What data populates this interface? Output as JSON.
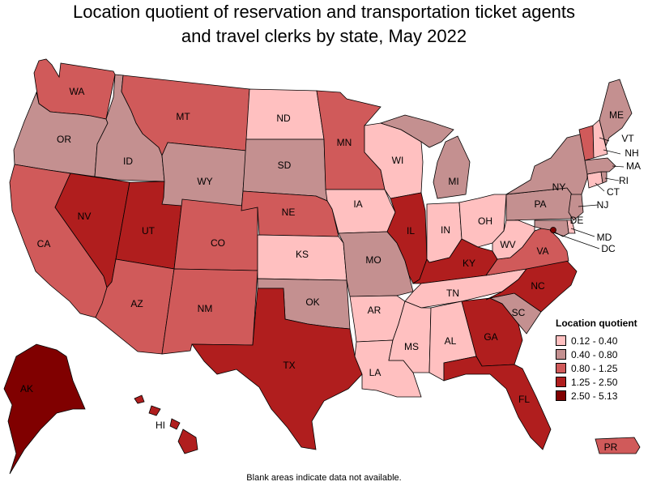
{
  "title_line1": "Location quotient of reservation and transportation ticket agents",
  "title_line2": "and travel clerks by state, May 2022",
  "legend": {
    "title": "Location quotient",
    "items": [
      {
        "label": "0.12 - 0.40",
        "color": "#ffc0c0"
      },
      {
        "label": "0.40 - 0.80",
        "color": "#c49090"
      },
      {
        "label": "0.80 - 1.25",
        "color": "#d05a5a"
      },
      {
        "label": "1.25 - 2.50",
        "color": "#b01e1e"
      },
      {
        "label": "2.50 - 5.13",
        "color": "#800000"
      }
    ]
  },
  "footnote": "Blank areas indicate data not available.",
  "states": [
    {
      "abbr": "WA",
      "cls": 2
    },
    {
      "abbr": "OR",
      "cls": 1
    },
    {
      "abbr": "CA",
      "cls": 2
    },
    {
      "abbr": "ID",
      "cls": 1
    },
    {
      "abbr": "NV",
      "cls": 3
    },
    {
      "abbr": "UT",
      "cls": 3
    },
    {
      "abbr": "AZ",
      "cls": 2
    },
    {
      "abbr": "MT",
      "cls": 2
    },
    {
      "abbr": "WY",
      "cls": 1
    },
    {
      "abbr": "CO",
      "cls": 2
    },
    {
      "abbr": "NM",
      "cls": 2
    },
    {
      "abbr": "ND",
      "cls": 0
    },
    {
      "abbr": "SD",
      "cls": 1
    },
    {
      "abbr": "NE",
      "cls": 2
    },
    {
      "abbr": "KS",
      "cls": 0
    },
    {
      "abbr": "OK",
      "cls": 1
    },
    {
      "abbr": "TX",
      "cls": 3
    },
    {
      "abbr": "MN",
      "cls": 2
    },
    {
      "abbr": "IA",
      "cls": 0
    },
    {
      "abbr": "MO",
      "cls": 1
    },
    {
      "abbr": "AR",
      "cls": 0
    },
    {
      "abbr": "LA",
      "cls": 0
    },
    {
      "abbr": "WI",
      "cls": 0
    },
    {
      "abbr": "IL",
      "cls": 3
    },
    {
      "abbr": "MI",
      "cls": 1
    },
    {
      "abbr": "IN",
      "cls": 0
    },
    {
      "abbr": "OH",
      "cls": 0
    },
    {
      "abbr": "KY",
      "cls": 3
    },
    {
      "abbr": "TN",
      "cls": 0
    },
    {
      "abbr": "MS",
      "cls": 0
    },
    {
      "abbr": "AL",
      "cls": 0
    },
    {
      "abbr": "GA",
      "cls": 3
    },
    {
      "abbr": "FL",
      "cls": 3
    },
    {
      "abbr": "SC",
      "cls": 1
    },
    {
      "abbr": "NC",
      "cls": 3
    },
    {
      "abbr": "VA",
      "cls": 2
    },
    {
      "abbr": "WV",
      "cls": 0
    },
    {
      "abbr": "PA",
      "cls": 1
    },
    {
      "abbr": "NY",
      "cls": 1
    },
    {
      "abbr": "NJ",
      "cls": 1
    },
    {
      "abbr": "DE",
      "cls": 0
    },
    {
      "abbr": "MD",
      "cls": 1
    },
    {
      "abbr": "DC",
      "cls": 4
    },
    {
      "abbr": "CT",
      "cls": 0
    },
    {
      "abbr": "RI",
      "cls": 1
    },
    {
      "abbr": "MA",
      "cls": 1
    },
    {
      "abbr": "VT",
      "cls": 2
    },
    {
      "abbr": "NH",
      "cls": 0
    },
    {
      "abbr": "ME",
      "cls": 1
    },
    {
      "abbr": "AK",
      "cls": 4
    },
    {
      "abbr": "HI",
      "cls": 3
    },
    {
      "abbr": "PR",
      "cls": 2
    }
  ]
}
